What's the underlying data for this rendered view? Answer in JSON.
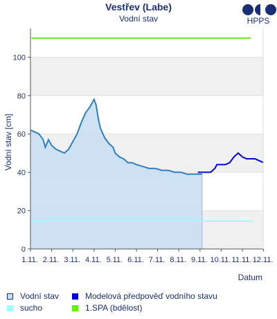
{
  "header": {
    "title": "Vestřev (Labe)",
    "subtitle": "Vodní stav",
    "logo_text": "HPPS"
  },
  "legend": {
    "items": [
      {
        "label": "Vodní stav",
        "color": "#c9dff2",
        "border": "#1a2f73"
      },
      {
        "label": "Modelová předpověď vodního stavu",
        "color": "#0000dd"
      },
      {
        "label": "sucho",
        "color": "#9ffbff"
      },
      {
        "label": "1.SPA (bdělost)",
        "color": "#66ee11"
      }
    ]
  },
  "colors": {
    "observed": "#2f7fbf",
    "observed_fill": "#c9dff2",
    "forecast": "#0000dd",
    "drought": "#9ffbff",
    "spa1": "#66ee11",
    "band": "#f0f0f0",
    "text": "#1a2f73"
  },
  "chart_data": {
    "type": "line",
    "title": "Vestřev (Labe)",
    "subtitle": "Vodní stav",
    "xlabel": "Datum",
    "ylabel": "Vodní stav [cm]",
    "x_ticks": [
      "1.11.",
      "2.11.",
      "3.11.",
      "4.11.",
      "5.11.",
      "6.11.",
      "7.11.",
      "8.11.",
      "9.11.",
      "10.11.",
      "11.11.",
      "12.11."
    ],
    "y_ticks": [
      0,
      20,
      40,
      60,
      80,
      100
    ],
    "ylim": [
      0,
      115
    ],
    "x_unit": "days since 1.11.",
    "xlim": [
      0,
      11.2
    ],
    "grid": "horizontal bands",
    "reference_lines": [
      {
        "name": "1.SPA (bdělost)",
        "value": 110
      },
      {
        "name": "sucho",
        "value": 14.5
      }
    ],
    "series": [
      {
        "name": "Vodní stav",
        "type": "area",
        "x": [
          0,
          0.2,
          0.4,
          0.6,
          0.7,
          0.85,
          1.0,
          1.2,
          1.4,
          1.6,
          1.8,
          2.0,
          2.2,
          2.4,
          2.6,
          2.8,
          2.9,
          3.0,
          3.1,
          3.2,
          3.3,
          3.5,
          3.7,
          3.9,
          4.0,
          4.2,
          4.4,
          4.6,
          4.8,
          5.0,
          5.3,
          5.6,
          5.9,
          6.2,
          6.5,
          6.8,
          7.1,
          7.4,
          7.7,
          8.0,
          8.1
        ],
        "values": [
          62,
          61,
          60,
          57,
          53,
          57,
          54,
          52,
          51,
          50,
          52,
          56,
          60,
          66,
          71,
          74,
          76,
          78,
          75,
          68,
          63,
          58,
          55,
          53,
          50,
          48,
          47,
          45,
          45,
          44,
          43,
          42,
          42,
          41,
          41,
          40,
          40,
          39,
          39,
          39,
          39
        ]
      },
      {
        "name": "Modelová předpověď vodního stavu",
        "type": "line",
        "x": [
          7.9,
          8.2,
          8.5,
          8.7,
          8.8,
          9.0,
          9.2,
          9.4,
          9.6,
          9.8,
          10.0,
          10.2,
          10.4,
          10.6,
          10.8,
          11.0
        ],
        "values": [
          40,
          40,
          40,
          42,
          44,
          44,
          44,
          45,
          48,
          50,
          48,
          47,
          47,
          47,
          46,
          45
        ]
      }
    ]
  }
}
